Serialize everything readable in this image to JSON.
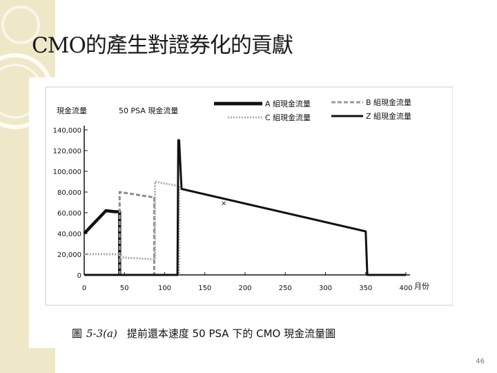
{
  "slide": {
    "title": "CMO的產生對證券化的貢獻",
    "page_number": "46",
    "caption": {
      "label": "圖",
      "number": "5-3(a)",
      "text": "提前還本速度 50 PSA 下的 CMO 現金流量圖"
    }
  },
  "chart_data": {
    "type": "line",
    "title": "50 PSA 現金流量",
    "xlabel": "月份",
    "ylabel": "現金流量",
    "xlim": [
      0,
      400
    ],
    "ylim": [
      0,
      140000
    ],
    "x_ticks": [
      "0",
      "50",
      "100",
      "150",
      "200",
      "250",
      "300",
      "350",
      "400"
    ],
    "y_ticks": [
      "0",
      "20,000",
      "40,000",
      "60,000",
      "80,000",
      "100,000",
      "120,000",
      "140,000"
    ],
    "grid": false,
    "legend_position": "top",
    "series": [
      {
        "name": "A 組現金流量",
        "style": "solid-thick",
        "points": [
          [
            0,
            40000
          ],
          [
            27,
            62000
          ],
          [
            38,
            61000
          ],
          [
            44,
            61000
          ],
          [
            44,
            0
          ]
        ]
      },
      {
        "name": "B 組現金流量",
        "style": "dashed-gray",
        "points": [
          [
            44,
            0
          ],
          [
            44,
            80000
          ],
          [
            85,
            75000
          ],
          [
            87,
            75000
          ],
          [
            87,
            0
          ]
        ]
      },
      {
        "name": "C 組現金流量",
        "style": "dotted-gray",
        "points": [
          [
            0,
            20000
          ],
          [
            44,
            20000
          ],
          [
            44,
            17000
          ],
          [
            88,
            15000
          ],
          [
            88,
            45000
          ],
          [
            88,
            90000
          ],
          [
            116,
            86000
          ],
          [
            118,
            86000
          ],
          [
            118,
            0
          ]
        ]
      },
      {
        "name": "Z 組現金流量",
        "style": "solid",
        "points": [
          [
            0,
            0
          ],
          [
            116,
            0
          ],
          [
            117,
            130000
          ],
          [
            118,
            130000
          ],
          [
            121,
            83000
          ],
          [
            350,
            42000
          ],
          [
            352,
            0
          ],
          [
            400,
            0
          ]
        ]
      }
    ]
  }
}
